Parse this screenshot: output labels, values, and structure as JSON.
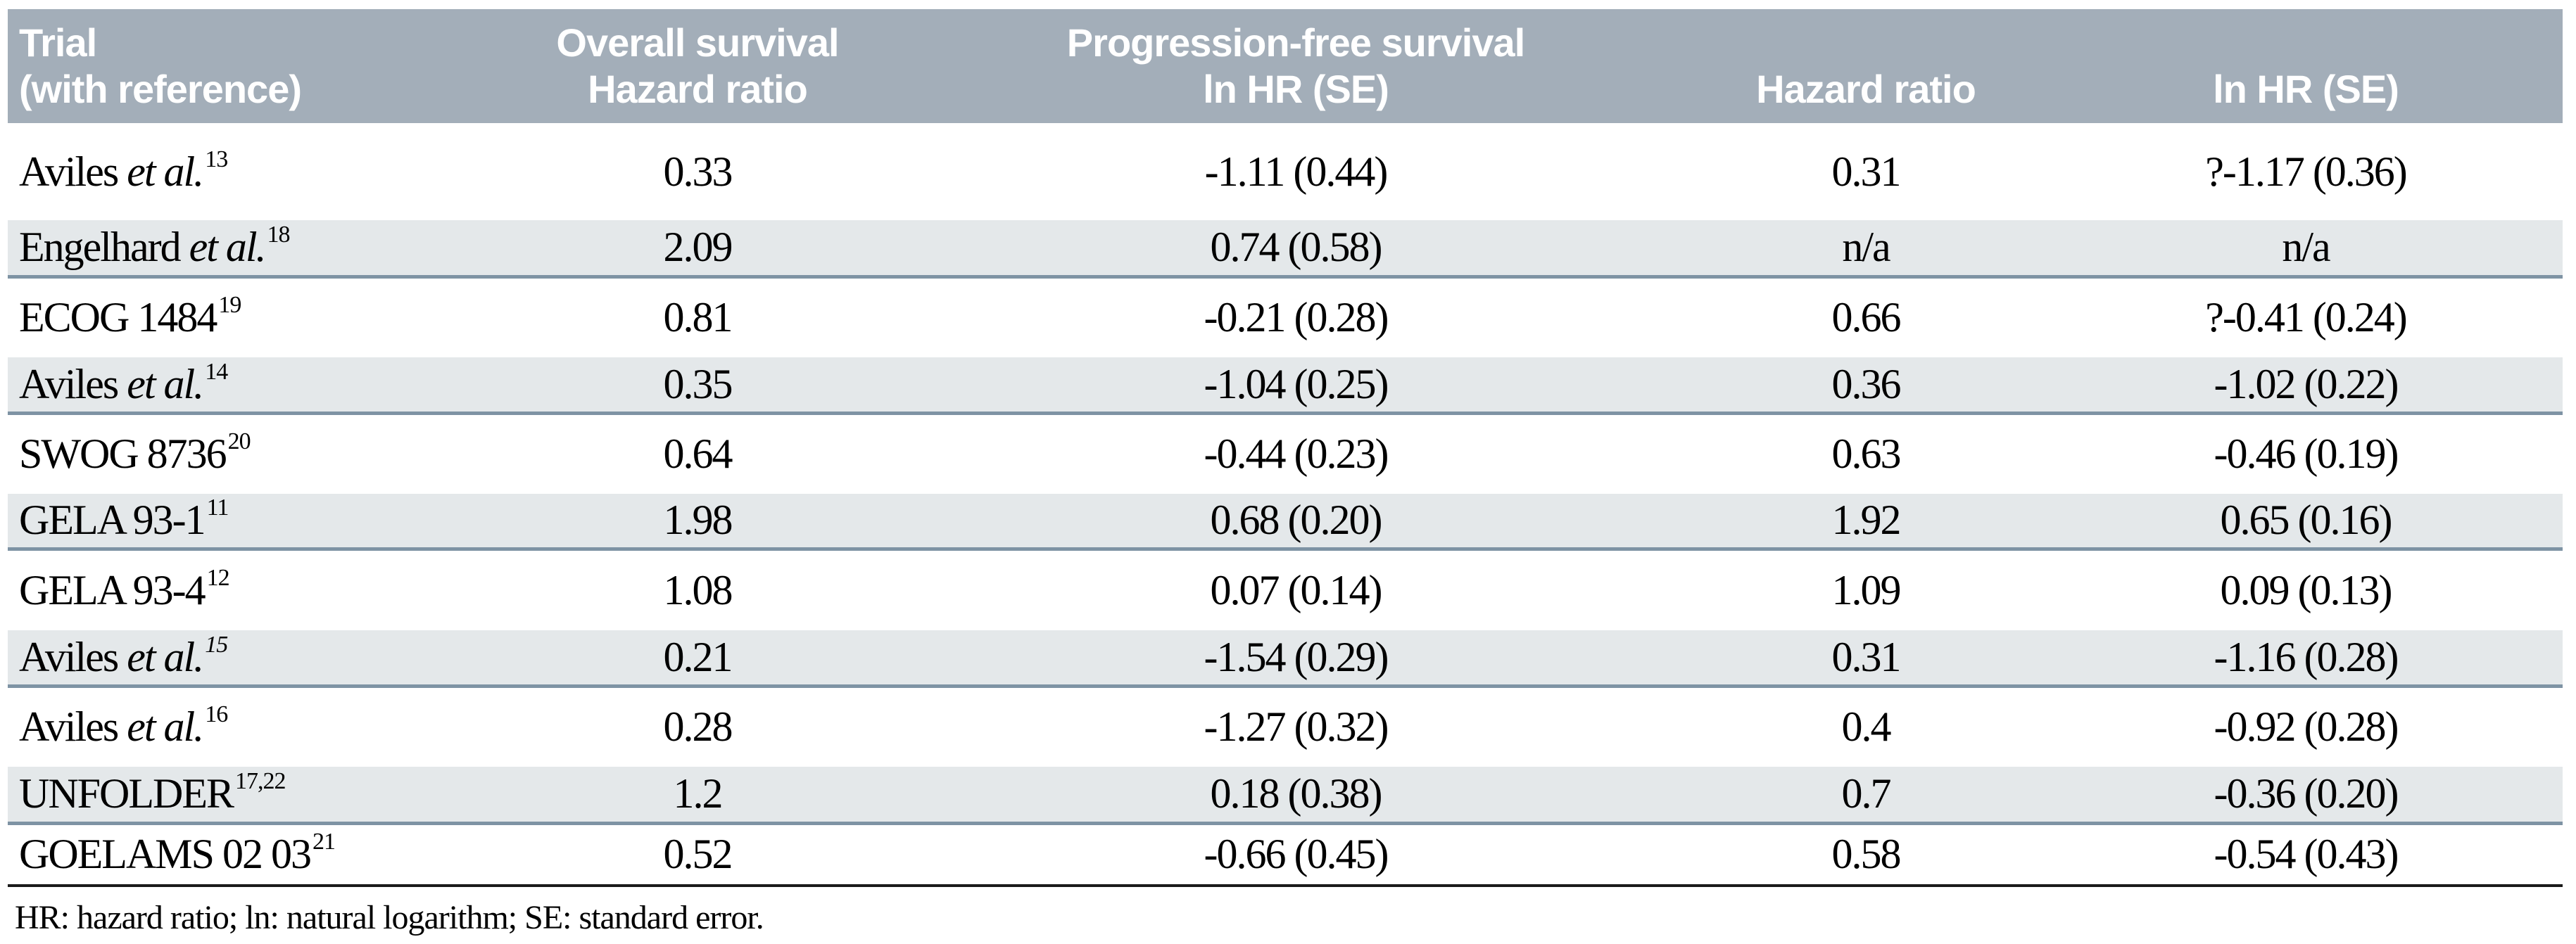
{
  "table": {
    "columns": [
      {
        "header_line1": "Trial",
        "header_line2": "(with reference)"
      },
      {
        "header_line1": "Overall survival",
        "header_line2": "Hazard ratio"
      },
      {
        "header_line1": "Progression-free survival",
        "header_line2": "ln HR (SE)"
      },
      {
        "header_line1": "",
        "header_line2": "Hazard ratio"
      },
      {
        "header_line1": "",
        "header_line2": "ln HR (SE)"
      }
    ],
    "rows": [
      {
        "name": "Aviles",
        "etal": "et al.",
        "ref": "13",
        "os_hr": "0.33",
        "pfs_ln_hr": "-1.11 (0.44)",
        "pfs_hr": "0.31",
        "pfs_ln_hr_2": "?-1.17 (0.36)",
        "shade": false
      },
      {
        "name": "Engelhard",
        "etal": "et al.",
        "ref": "18",
        "os_hr": "2.09",
        "pfs_ln_hr": "0.74 (0.58)",
        "pfs_hr": "n/a",
        "pfs_ln_hr_2": "n/a",
        "shade": true
      },
      {
        "name": "ECOG 1484",
        "etal": "",
        "ref": "19",
        "os_hr": "0.81",
        "pfs_ln_hr": "-0.21 (0.28)",
        "pfs_hr": "0.66",
        "pfs_ln_hr_2": "?-0.41 (0.24)",
        "shade": false
      },
      {
        "name": "Aviles",
        "etal": "et al.",
        "ref": "14",
        "os_hr": "0.35",
        "pfs_ln_hr": "-1.04 (0.25)",
        "pfs_hr": "0.36",
        "pfs_ln_hr_2": "-1.02 (0.22)",
        "shade": true
      },
      {
        "name": "SWOG 8736",
        "etal": "",
        "ref": "20",
        "os_hr": "0.64",
        "pfs_ln_hr": "-0.44 (0.23)",
        "pfs_hr": "0.63",
        "pfs_ln_hr_2": "-0.46 (0.19)",
        "shade": false
      },
      {
        "name": "GELA 93-1",
        "etal": "",
        "ref": "11",
        "os_hr": "1.98",
        "pfs_ln_hr": "0.68 (0.20)",
        "pfs_hr": "1.92",
        "pfs_ln_hr_2": "0.65 (0.16)",
        "shade": true
      },
      {
        "name": "GELA 93-4",
        "etal": "",
        "ref": "12",
        "os_hr": "1.08",
        "pfs_ln_hr": "0.07 (0.14)",
        "pfs_hr": "1.09",
        "pfs_ln_hr_2": "0.09 (0.13)",
        "shade": false
      },
      {
        "name": "Aviles",
        "etal": "et al.",
        "ref": "15",
        "ref_italic": true,
        "os_hr": "0.21",
        "pfs_ln_hr": "-1.54 (0.29)",
        "pfs_hr": "0.31",
        "pfs_ln_hr_2": "-1.16 (0.28)",
        "shade": true
      },
      {
        "name": "Aviles",
        "etal": "et al.",
        "ref": "16",
        "os_hr": "0.28",
        "pfs_ln_hr": "-1.27 (0.32)",
        "pfs_hr": "0.4",
        "pfs_ln_hr_2": "-0.92 (0.28)",
        "shade": false
      },
      {
        "name": "UNFOLDER",
        "etal": "",
        "ref": "17,22",
        "os_hr": "1.2",
        "pfs_ln_hr": "0.18 (0.38)",
        "pfs_hr": "0.7",
        "pfs_ln_hr_2": "-0.36 (0.20)",
        "shade": true
      },
      {
        "name": "GOELAMS 02 03",
        "etal": "",
        "ref": "21",
        "os_hr": "0.52",
        "pfs_ln_hr": "-0.66 (0.45)",
        "pfs_hr": "0.58",
        "pfs_ln_hr_2": "-0.54 (0.43)",
        "shade": false
      }
    ],
    "footnote": "HR: hazard ratio; ln: natural logarithm; SE: standard error."
  },
  "colors": {
    "header_bg": "#a3aeb9",
    "stripe_bg": "#e4e8ea",
    "divider": "#7e93a4",
    "bottom_border": "#1b1b1b",
    "header_text": "#ffffff",
    "text": "#000000"
  }
}
